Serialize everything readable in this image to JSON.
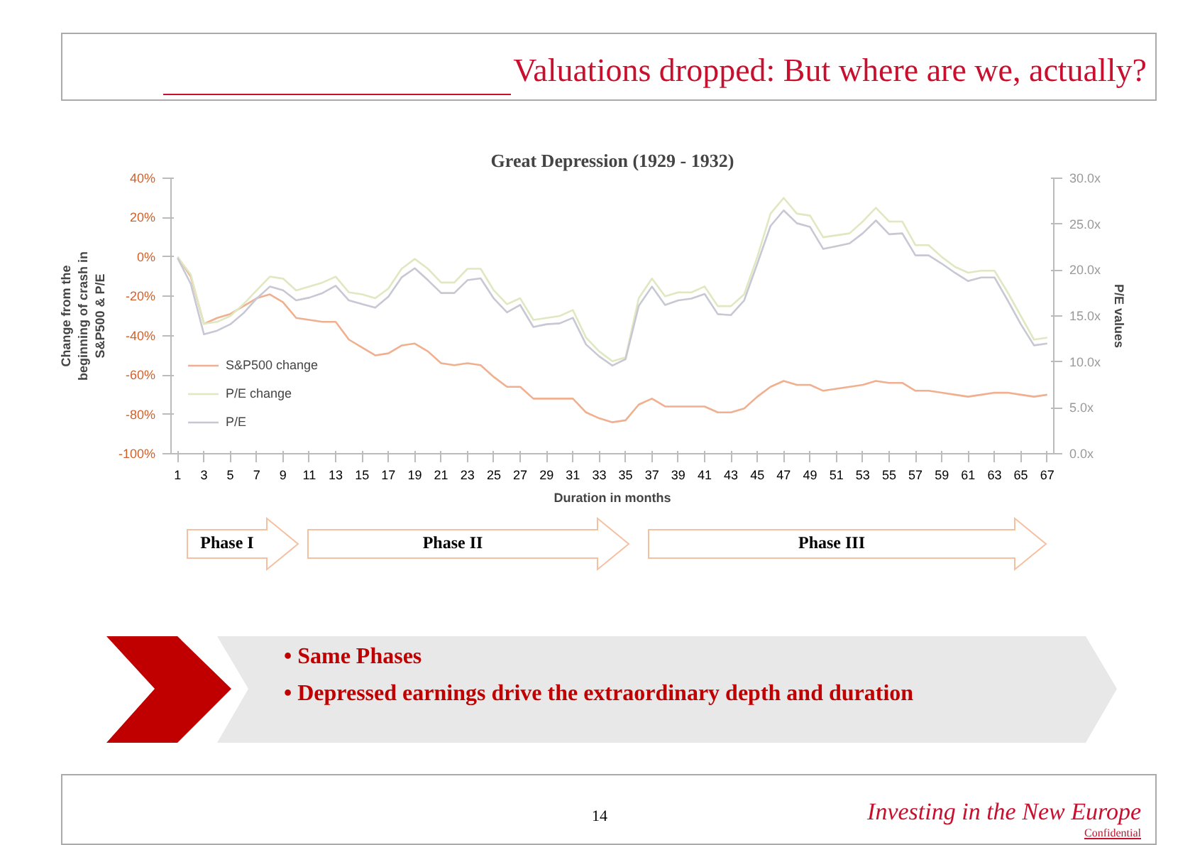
{
  "chart_data": {
    "type": "line",
    "title": "Great Depression (1929 - 1932)",
    "xlabel": "Duration in months",
    "ylabel": "Change from the beginning of crash in S&P500 & P/E",
    "y2label": "P/E values",
    "x": [
      1,
      2,
      3,
      4,
      5,
      6,
      7,
      8,
      9,
      10,
      11,
      12,
      13,
      14,
      15,
      16,
      17,
      18,
      19,
      20,
      21,
      22,
      23,
      24,
      25,
      26,
      27,
      28,
      29,
      30,
      31,
      32,
      33,
      34,
      35,
      36,
      37,
      38,
      39,
      40,
      41,
      42,
      43,
      44,
      45,
      46,
      47,
      48,
      49,
      50,
      51,
      52,
      53,
      54,
      55,
      56,
      57,
      58,
      59,
      60,
      61,
      62,
      63,
      64,
      65,
      66,
      67
    ],
    "xlim": [
      0.5,
      67.5
    ],
    "xticks": [
      1,
      3,
      5,
      7,
      9,
      11,
      13,
      15,
      17,
      19,
      21,
      23,
      25,
      27,
      29,
      31,
      33,
      35,
      37,
      39,
      41,
      43,
      45,
      47,
      49,
      51,
      53,
      55,
      57,
      59,
      61,
      63,
      65,
      67
    ],
    "ylim": [
      -100,
      40
    ],
    "yticks": [
      {
        "value": -100,
        "label": "-100%"
      },
      {
        "value": -80,
        "label": "-80%"
      },
      {
        "value": -60,
        "label": "-60%"
      },
      {
        "value": -40,
        "label": "-40%"
      },
      {
        "value": -20,
        "label": "-20%"
      },
      {
        "value": 0,
        "label": "0%"
      },
      {
        "value": 20,
        "label": "20%"
      },
      {
        "value": 40,
        "label": "40%"
      }
    ],
    "y2lim": [
      0,
      30
    ],
    "y2ticks": [
      {
        "value": 0,
        "label": "0.0x"
      },
      {
        "value": 5,
        "label": "5.0x"
      },
      {
        "value": 10,
        "label": "10.0x"
      },
      {
        "value": 15,
        "label": "15.0x"
      },
      {
        "value": 20,
        "label": "20.0x"
      },
      {
        "value": 25,
        "label": "25.0x"
      },
      {
        "value": 30,
        "label": "30.0x"
      }
    ],
    "series": [
      {
        "name": "S&P500 change",
        "color": "#f0b090",
        "values": [
          0,
          -10,
          -34,
          -31,
          -29,
          -25,
          -21,
          -19,
          -23,
          -31,
          -32,
          -33,
          -33,
          -42,
          -46,
          -50,
          -49,
          -45,
          -44,
          -48,
          -54,
          -55,
          -54,
          -55,
          -61,
          -66,
          -66,
          -72,
          -72,
          -72,
          -72,
          -79,
          -82,
          -84,
          -83,
          -75,
          -72,
          -76,
          -76,
          -76,
          -76,
          -79,
          -79,
          -77,
          -71,
          -66,
          -63,
          -65,
          -65,
          -68,
          -67,
          -66,
          -65,
          -63,
          -64,
          -64,
          -68,
          -68,
          -69,
          -70,
          -71,
          -70,
          -69,
          -69,
          -70,
          -71,
          -70
        ]
      },
      {
        "name": "P/E change",
        "color": "#dfe8c0",
        "values": [
          0,
          -9,
          -34,
          -33,
          -30,
          -24,
          -17,
          -10,
          -11,
          -17,
          -15,
          -13,
          -10,
          -18,
          -19,
          -21,
          -16,
          -6,
          -1,
          -6,
          -13,
          -13,
          -6,
          -6,
          -17,
          -24,
          -21,
          -32,
          -31,
          -30,
          -27,
          -41,
          -48,
          -53,
          -51,
          -21,
          -11,
          -20,
          -18,
          -18,
          -15,
          -25,
          -25,
          -19,
          0,
          22,
          30,
          22,
          21,
          10,
          11,
          12,
          18,
          25,
          18,
          18,
          6,
          6,
          0,
          -5,
          -8,
          -7,
          -7,
          -18,
          -30,
          -42,
          -41
        ]
      },
      {
        "name": "P/E",
        "color": "#c8c8d4",
        "axis": "y2",
        "values": [
          21.3,
          18.5,
          13.0,
          13.4,
          14.1,
          15.3,
          16.9,
          18.2,
          17.8,
          16.7,
          17.0,
          17.5,
          18.3,
          16.7,
          16.3,
          15.9,
          17.1,
          19.2,
          20.2,
          18.9,
          17.5,
          17.5,
          18.9,
          19.1,
          16.9,
          15.4,
          16.2,
          13.8,
          14.1,
          14.2,
          14.8,
          11.9,
          10.6,
          9.6,
          10.3,
          16.1,
          18.2,
          16.2,
          16.7,
          16.9,
          17.4,
          15.2,
          15.1,
          16.7,
          20.7,
          24.8,
          26.5,
          25.1,
          24.7,
          22.3,
          22.6,
          22.9,
          24.0,
          25.4,
          23.9,
          24.0,
          21.6,
          21.6,
          20.7,
          19.7,
          18.8,
          19.2,
          19.2,
          16.7,
          14.1,
          11.8,
          12.0
        ]
      }
    ],
    "annotations": [
      "Valuations dropped: But where are we, actually?",
      "• Same Phases",
      "• Depressed earnings drive the extraordinary depth and duration",
      "14",
      "Investing in the New Europe",
      "Confidential",
      "Phase I",
      "Phase II",
      "Phase III"
    ],
    "legend": "bottom left",
    "grid": false,
    "marker": "none",
    "line_style": "solid"
  }
}
